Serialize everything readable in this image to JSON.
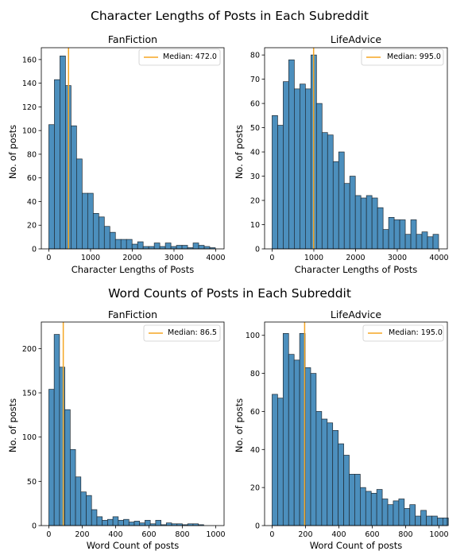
{
  "figure": {
    "row_titles": [
      "Character Lengths of Posts in Each Subreddit",
      "Word Counts of Posts in Each Subreddit"
    ],
    "bar_color": "#4c8fbd",
    "bar_edge_color": "#1f2a33",
    "median_color": "#f5a623"
  },
  "chart_data": [
    {
      "type": "bar",
      "title": "FanFiction",
      "xlabel": "Character Lengths of Posts",
      "ylabel": "No. of posts",
      "xlim": [
        -180,
        4200
      ],
      "ylim": [
        0,
        170
      ],
      "xticks": [
        0,
        1000,
        2000,
        3000,
        4000
      ],
      "yticks": [
        0,
        20,
        40,
        60,
        80,
        100,
        120,
        140,
        160
      ],
      "bin_start": 0,
      "bin_width": 133,
      "values": [
        105,
        143,
        163,
        138,
        104,
        76,
        47,
        47,
        30,
        27,
        19,
        14,
        8,
        8,
        8,
        4,
        6,
        2,
        2,
        5,
        2,
        5,
        2,
        3,
        3,
        1,
        5,
        3,
        2,
        1
      ],
      "median": 472.0,
      "legend": "Median: 472.0",
      "legend_loc": "top-right"
    },
    {
      "type": "bar",
      "title": "LifeAdvice",
      "xlabel": "Character Lengths of Posts",
      "ylabel": "No. of posts",
      "xlim": [
        -180,
        4200
      ],
      "ylim": [
        0,
        83
      ],
      "xticks": [
        0,
        1000,
        2000,
        3000,
        4000
      ],
      "yticks": [
        0,
        10,
        20,
        30,
        40,
        50,
        60,
        70,
        80
      ],
      "bin_start": 0,
      "bin_width": 133,
      "values": [
        55,
        51,
        69,
        78,
        66,
        68,
        66,
        80,
        60,
        48,
        47,
        36,
        40,
        27,
        30,
        22,
        21,
        22,
        21,
        17,
        8,
        13,
        12,
        12,
        6,
        12,
        6,
        7,
        5,
        6
      ],
      "median": 995.0,
      "legend": "Median: 995.0",
      "legend_loc": "top-right"
    },
    {
      "type": "bar",
      "title": "FanFiction",
      "xlabel": "Word Count of posts",
      "ylabel": "No. of posts",
      "xlim": [
        -45,
        1050
      ],
      "ylim": [
        0,
        230
      ],
      "xticks": [
        0,
        200,
        400,
        600,
        800,
        1000
      ],
      "yticks": [
        0,
        50,
        100,
        150,
        200
      ],
      "bin_start": 0,
      "bin_width": 32,
      "values": [
        154,
        216,
        179,
        131,
        86,
        55,
        38,
        34,
        18,
        10,
        6,
        7,
        10,
        6,
        7,
        4,
        5,
        3,
        6,
        2,
        6,
        1,
        3,
        2,
        2,
        1,
        2,
        2,
        1
      ],
      "median": 86.5,
      "legend": "Median: 86.5",
      "legend_loc": "top-right"
    },
    {
      "type": "bar",
      "title": "LifeAdvice",
      "xlabel": "Word Count of posts",
      "ylabel": "No. of posts",
      "xlim": [
        -45,
        1050
      ],
      "ylim": [
        0,
        107
      ],
      "xticks": [
        0,
        200,
        400,
        600,
        800,
        1000
      ],
      "yticks": [
        0,
        20,
        40,
        60,
        80,
        100
      ],
      "bin_start": 0,
      "bin_width": 33,
      "values": [
        69,
        67,
        101,
        90,
        87,
        101,
        83,
        80,
        60,
        56,
        54,
        50,
        43,
        37,
        27,
        27,
        20,
        18,
        17,
        19,
        14,
        11,
        13,
        14,
        9,
        11,
        5,
        8,
        5,
        5,
        4,
        4
      ],
      "median": 195.0,
      "legend": "Median: 195.0",
      "legend_loc": "top-right"
    }
  ]
}
